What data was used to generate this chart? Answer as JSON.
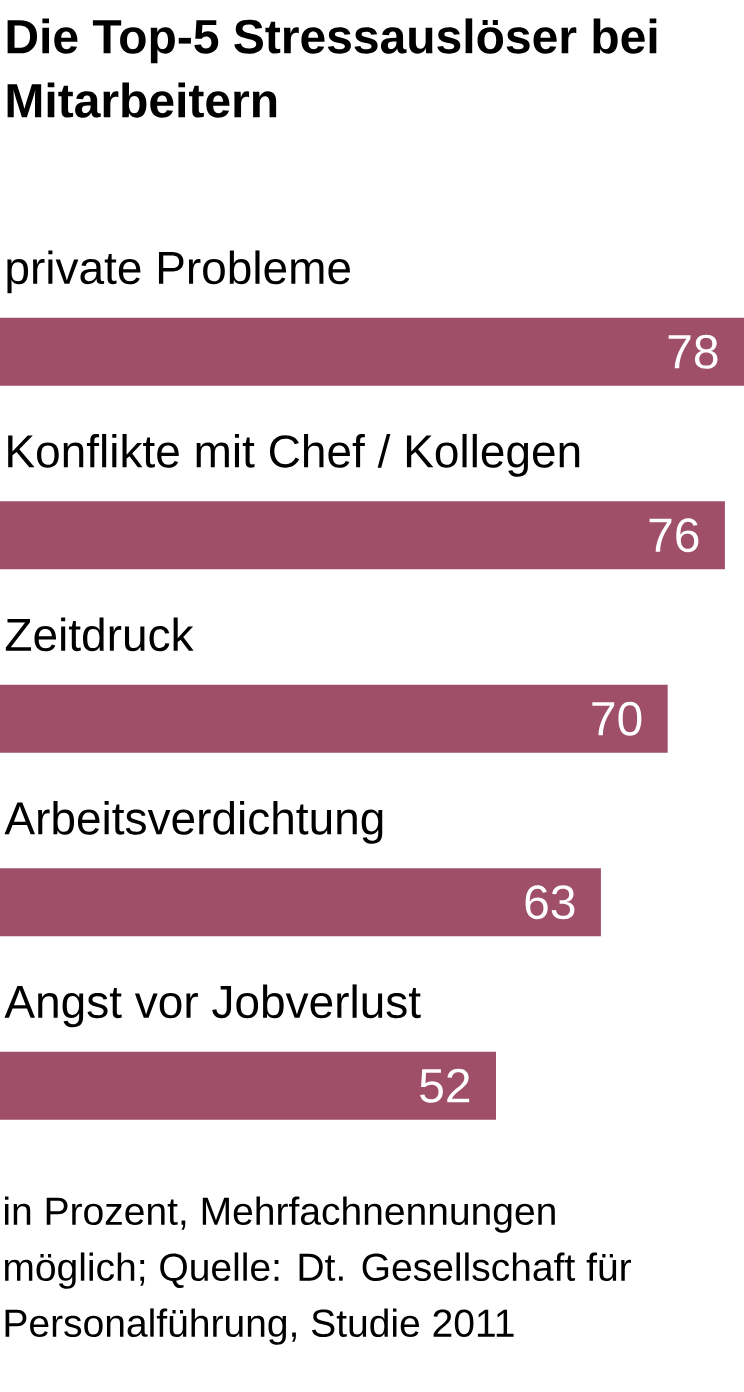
{
  "chart_data": {
    "type": "bar",
    "orientation": "horizontal",
    "title": "Die Top-5 Stressauslöser bei Mitarbeitern",
    "categories": [
      "private Probleme",
      "Konflikte mit Chef / Kollegen",
      "Zeitdruck",
      "Arbeitsverdichtung",
      "Angst vor Jobverlust"
    ],
    "values": [
      78,
      76,
      70,
      63,
      52
    ],
    "color": "#a04f68",
    "data_labels": true,
    "annotations": [
      "in Prozent, Mehrfachnennungen möglich; Quelle: Dt. Gesellschaft für Personalführung, Studie 2011"
    ]
  }
}
